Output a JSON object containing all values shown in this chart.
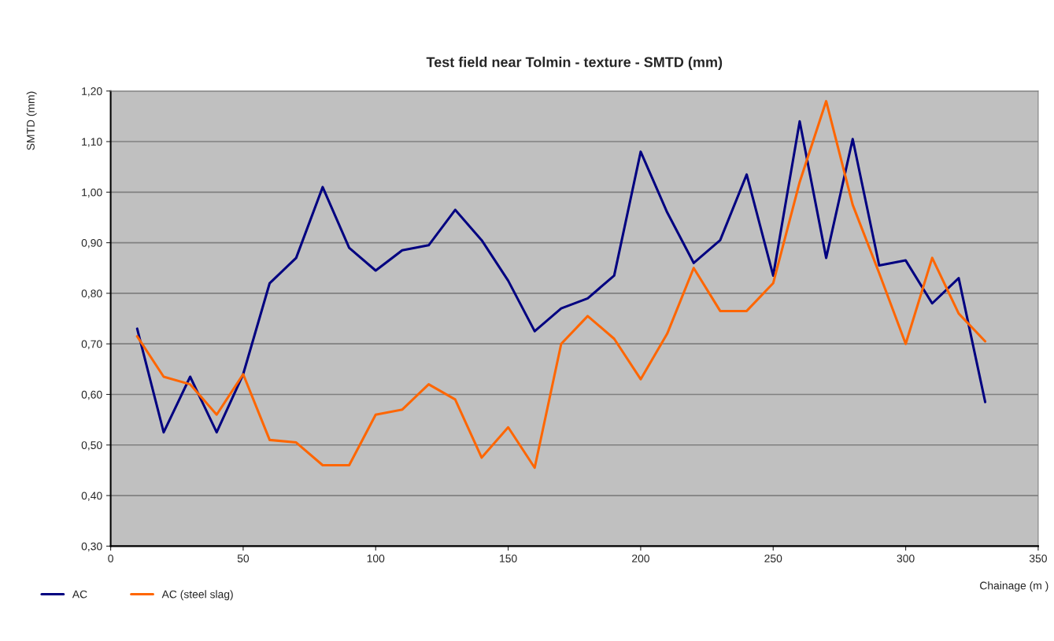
{
  "chart_data": {
    "type": "line",
    "title": "Test field near Tolmin - texture - SMTD (mm)",
    "xlabel": "Chainage (m )",
    "ylabel": "SMTD (mm)",
    "x": [
      10,
      20,
      30,
      40,
      50,
      60,
      70,
      80,
      90,
      100,
      110,
      120,
      130,
      140,
      150,
      160,
      170,
      180,
      190,
      200,
      210,
      220,
      230,
      240,
      250,
      260,
      270,
      280,
      290,
      300,
      310,
      320,
      330
    ],
    "series": [
      {
        "name": "AC",
        "color": "#000080",
        "values": [
          0.73,
          0.525,
          0.635,
          0.525,
          0.64,
          0.82,
          0.87,
          1.01,
          0.89,
          0.845,
          0.885,
          0.895,
          0.965,
          0.905,
          0.825,
          0.725,
          0.77,
          0.79,
          0.835,
          1.08,
          0.96,
          0.86,
          0.905,
          1.035,
          0.835,
          1.14,
          0.87,
          1.105,
          0.855,
          0.865,
          0.78,
          0.83,
          0.585
        ]
      },
      {
        "name": "AC (steel slag)",
        "color": "#ff6600",
        "values": [
          0.715,
          0.635,
          0.62,
          0.56,
          0.64,
          0.51,
          0.505,
          0.46,
          0.46,
          0.56,
          0.57,
          0.62,
          0.59,
          0.475,
          0.535,
          0.455,
          0.7,
          0.755,
          0.71,
          0.63,
          0.72,
          0.85,
          0.765,
          0.765,
          0.82,
          1.02,
          1.18,
          0.975,
          0.84,
          0.7,
          0.87,
          0.76,
          0.705
        ]
      }
    ],
    "xlim": [
      0,
      350
    ],
    "xticks": [
      0,
      50,
      100,
      150,
      200,
      250,
      300,
      350
    ],
    "ylim": [
      0.3,
      1.2
    ],
    "yticks": [
      {
        "value": 0.3,
        "label": "0,30"
      },
      {
        "value": 0.4,
        "label": "0,40"
      },
      {
        "value": 0.5,
        "label": "0,50"
      },
      {
        "value": 0.6,
        "label": "0,60"
      },
      {
        "value": 0.7,
        "label": "0,70"
      },
      {
        "value": 0.8,
        "label": "0,80"
      },
      {
        "value": 0.9,
        "label": "0,90"
      },
      {
        "value": 1.0,
        "label": "1,00"
      },
      {
        "value": 1.1,
        "label": "1,10"
      },
      {
        "value": 1.2,
        "label": "1,20"
      }
    ],
    "grid": "y",
    "legend": "bottom left",
    "marker": "none",
    "line_style": "solid"
  }
}
